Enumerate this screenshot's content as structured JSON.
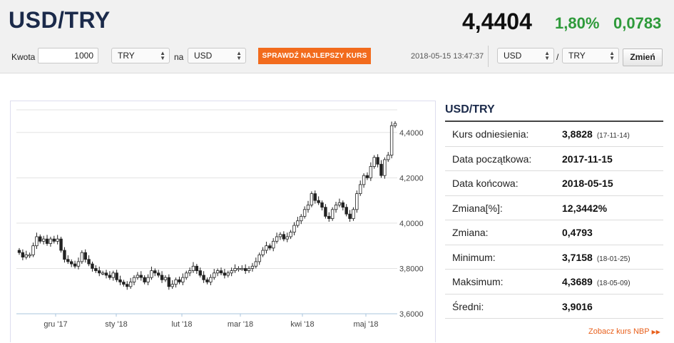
{
  "header": {
    "pair": "USD/TRY",
    "rate": "4,4404",
    "change_pct": "1,80%",
    "change_abs": "0,0783"
  },
  "converter": {
    "amount_label": "Kwota",
    "amount_value": "1000",
    "from_currency": "TRY",
    "to_label": "na",
    "to_currency": "USD",
    "best_rate_button": "SPRAWDŹ NAJLEPSZY KURS",
    "timestamp": "2018-05-15 13:47:37",
    "pair_base": "USD",
    "pair_separator": "/",
    "pair_quote": "TRY",
    "change_button": "Zmień"
  },
  "chart_data": {
    "type": "candlestick",
    "x_ticks": [
      "gru '17",
      "sty '18",
      "lut '18",
      "mar '18",
      "kwi '18",
      "maj '18"
    ],
    "y_ticks": [
      "4,4000",
      "4,2000",
      "4,0000",
      "3,8000",
      "3,6000"
    ],
    "ylim": [
      3.6,
      4.4
    ],
    "grid": true,
    "closes": [
      3.87,
      3.85,
      3.86,
      3.86,
      3.9,
      3.94,
      3.92,
      3.93,
      3.91,
      3.93,
      3.92,
      3.93,
      3.88,
      3.84,
      3.83,
      3.82,
      3.81,
      3.83,
      3.87,
      3.84,
      3.82,
      3.8,
      3.79,
      3.78,
      3.78,
      3.77,
      3.76,
      3.78,
      3.75,
      3.74,
      3.73,
      3.72,
      3.74,
      3.76,
      3.77,
      3.76,
      3.74,
      3.76,
      3.79,
      3.78,
      3.77,
      3.75,
      3.76,
      3.72,
      3.73,
      3.75,
      3.74,
      3.76,
      3.78,
      3.79,
      3.81,
      3.79,
      3.77,
      3.75,
      3.74,
      3.76,
      3.78,
      3.79,
      3.78,
      3.77,
      3.78,
      3.79,
      3.8,
      3.8,
      3.8,
      3.79,
      3.8,
      3.81,
      3.83,
      3.86,
      3.88,
      3.9,
      3.89,
      3.92,
      3.94,
      3.95,
      3.93,
      3.94,
      3.96,
      3.99,
      4.01,
      4.03,
      4.06,
      4.08,
      4.13,
      4.1,
      4.09,
      4.07,
      4.03,
      4.02,
      4.06,
      4.08,
      4.09,
      4.07,
      4.04,
      4.02,
      4.06,
      4.13,
      4.17,
      4.21,
      4.2,
      4.25,
      4.29,
      4.26,
      4.21,
      4.28,
      4.3,
      4.43,
      4.44
    ],
    "series": [
      {
        "values": []
      }
    ]
  },
  "info": {
    "title": "USD/TRY",
    "rows": [
      {
        "label": "Kurs odniesienia:",
        "value": "3,8828",
        "date": "(17-11-14)"
      },
      {
        "label": "Data początkowa:",
        "value": "2017-11-15",
        "date": ""
      },
      {
        "label": "Data końcowa:",
        "value": "2018-05-15",
        "date": ""
      },
      {
        "label": "Zmiana[%]:",
        "value": "12,3442%",
        "date": ""
      },
      {
        "label": "Zmiana:",
        "value": "0,4793",
        "date": ""
      },
      {
        "label": "Minimum:",
        "value": "3,7158",
        "date": "(18-01-25)"
      },
      {
        "label": "Maksimum:",
        "value": "4,3689",
        "date": "(18-05-09)"
      },
      {
        "label": "Średni:",
        "value": "3,9016",
        "date": ""
      }
    ],
    "nbp_link": "Zobacz kurs NBP"
  },
  "colors": {
    "accent": "#f26b1d",
    "positive": "#2e9a3a",
    "title": "#1b2a4a"
  }
}
